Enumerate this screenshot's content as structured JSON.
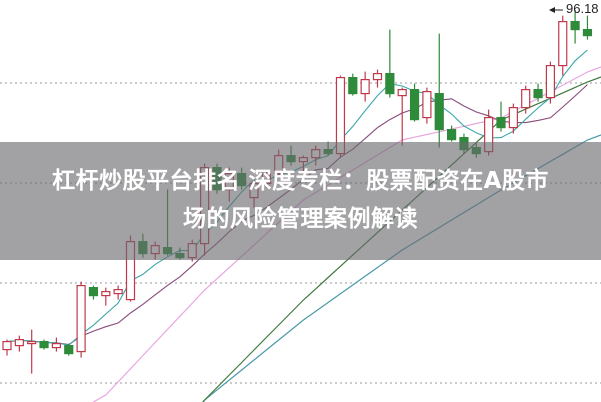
{
  "headline": {
    "line1": "杠杆炒股平台排名 深度专栏：股票配资在A股市",
    "line2": "场的风险管理案例解读"
  },
  "chart_data": {
    "type": "candlestick",
    "ylim": [
      76.6,
      96.7
    ],
    "grid": true,
    "max_label": "96.18",
    "colors": {
      "up": "#c0394b",
      "down": "#2e8b3a",
      "ma5": "#3aa6a6",
      "ma10": "#8a4a7a",
      "ma_pink": "#e8a6e0",
      "ma_green": "#3f7a3f",
      "ma_teal": "#4a9aa8",
      "grid": "#999999"
    },
    "candles": [
      [
        79.2,
        79.7,
        78.9,
        79.6
      ],
      [
        79.4,
        79.9,
        79.1,
        79.7
      ],
      [
        79.5,
        80.2,
        78.0,
        79.6
      ],
      [
        79.6,
        79.7,
        79.2,
        79.3
      ],
      [
        79.3,
        79.8,
        79.1,
        79.5
      ],
      [
        79.4,
        79.5,
        78.9,
        79.0
      ],
      [
        79.1,
        82.6,
        78.8,
        82.4
      ],
      [
        82.3,
        82.4,
        81.7,
        81.9
      ],
      [
        81.9,
        82.3,
        81.4,
        82.1
      ],
      [
        82.0,
        82.4,
        81.7,
        82.2
      ],
      [
        81.7,
        84.9,
        81.6,
        84.6
      ],
      [
        84.6,
        85.0,
        83.8,
        84.0
      ],
      [
        84.0,
        84.6,
        83.7,
        84.4
      ],
      [
        84.3,
        87.2,
        83.9,
        84.0
      ],
      [
        84.0,
        84.3,
        83.7,
        83.8
      ],
      [
        83.8,
        84.7,
        83.6,
        84.5
      ],
      [
        84.5,
        88.5,
        83.9,
        88.3
      ],
      [
        88.3,
        88.5,
        87.0,
        87.2
      ],
      [
        87.2,
        88.3,
        86.6,
        88.0
      ],
      [
        88.0,
        88.3,
        87.2,
        87.4
      ],
      [
        86.8,
        87.7,
        86.3,
        87.5
      ],
      [
        87.5,
        88.2,
        87.3,
        88.0
      ],
      [
        88.0,
        89.2,
        87.8,
        88.9
      ],
      [
        88.9,
        89.4,
        88.4,
        88.6
      ],
      [
        88.6,
        88.9,
        88.0,
        88.8
      ],
      [
        88.8,
        89.4,
        88.4,
        89.2
      ],
      [
        89.2,
        89.6,
        88.9,
        89.0
      ],
      [
        89.0,
        92.9,
        88.8,
        92.8
      ],
      [
        92.8,
        93.0,
        91.9,
        92.0
      ],
      [
        92.0,
        93.1,
        91.6,
        92.7
      ],
      [
        92.7,
        93.2,
        92.3,
        93.0
      ],
      [
        93.0,
        95.2,
        91.8,
        92.0
      ],
      [
        91.9,
        92.3,
        89.4,
        92.2
      ],
      [
        92.2,
        92.5,
        90.6,
        90.7
      ],
      [
        90.8,
        92.3,
        90.5,
        92.1
      ],
      [
        92.0,
        95.0,
        89.3,
        90.2
      ],
      [
        90.2,
        90.4,
        89.6,
        89.7
      ],
      [
        89.8,
        90.0,
        89.0,
        89.2
      ],
      [
        89.3,
        89.5,
        88.8,
        89.0
      ],
      [
        89.1,
        91.2,
        88.9,
        90.8
      ],
      [
        90.8,
        91.6,
        90.1,
        90.3
      ],
      [
        90.3,
        91.5,
        90.0,
        91.3
      ],
      [
        91.3,
        92.4,
        91.0,
        92.2
      ],
      [
        92.2,
        92.5,
        91.6,
        91.8
      ],
      [
        91.8,
        93.6,
        91.5,
        93.4
      ],
      [
        93.4,
        95.9,
        92.9,
        95.6
      ],
      [
        95.6,
        96.18,
        94.5,
        95.2
      ],
      [
        95.2,
        95.9,
        94.7,
        94.9
      ]
    ],
    "candle_fields": [
      "open",
      "high",
      "low",
      "close"
    ],
    "long_ma": {
      "index": [
        0,
        8,
        16,
        24,
        32,
        40,
        47
      ],
      "pink": [
        74.18,
        76.93,
        82.18,
        86.68,
        89.68,
        90.78,
        93.08
      ],
      "green": [
        68.68,
        71.68,
        76.68,
        81.68,
        86.18,
        90.68,
        92.58
      ],
      "teal": [
        61.68,
        69.18,
        76.68,
        80.68,
        84.18,
        87.18,
        89.68
      ]
    }
  }
}
